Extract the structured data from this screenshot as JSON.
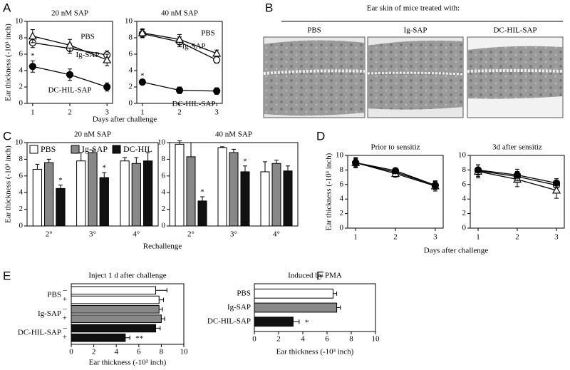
{
  "panel_b": {
    "panel": "B",
    "title": "Ear skin of mice treated with:",
    "labels": [
      "PBS",
      "Ig-SAP",
      "DC-HIL-SAP"
    ]
  },
  "chart_data": [
    {
      "type": "line",
      "panel": "A",
      "title": "20 nM SAP",
      "ylabel": "Ear thickness (-10³ inch)",
      "xlabel": "Days after challenge",
      "x": [
        1,
        2,
        3
      ],
      "xlim": [
        0.85,
        3.15
      ],
      "xticks": [
        1,
        2,
        3
      ],
      "ylim": [
        0,
        10
      ],
      "yticks": [
        0,
        2,
        4,
        6,
        8,
        10
      ],
      "series": [
        {
          "name": "PBS",
          "marker": "open-circle",
          "color": "#000000",
          "values": [
            7.4,
            6.7,
            5.9
          ],
          "errors": [
            0.6,
            0.6,
            0.5
          ]
        },
        {
          "name": "Ig-SAP",
          "marker": "open-triangle",
          "color": "#000000",
          "values": [
            8.2,
            7.1,
            5.3
          ],
          "errors": [
            0.8,
            0.7,
            0.7
          ]
        },
        {
          "name": "DC-HIL-SAP",
          "marker": "filled-circle",
          "color": "#000000",
          "values": [
            4.5,
            3.5,
            2.0
          ],
          "errors": [
            0.7,
            0.7,
            0.5
          ],
          "stars": [
            "*",
            null,
            null
          ]
        }
      ]
    },
    {
      "type": "line",
      "title": "40 nM SAP",
      "x": [
        1,
        2,
        3
      ],
      "xlim": [
        0.85,
        3.15
      ],
      "xticks": [
        1,
        2,
        3
      ],
      "ylim": [
        0,
        10
      ],
      "yticks": [
        0,
        2,
        4,
        6,
        8,
        10
      ],
      "series": [
        {
          "name": "PBS",
          "marker": "open-circle",
          "color": "#000000",
          "values": [
            8.5,
            7.5,
            5.3
          ],
          "errors": [
            0.5,
            0.6,
            0.4
          ]
        },
        {
          "name": "Ig-SAP",
          "marker": "open-triangle",
          "color": "#000000",
          "values": [
            8.6,
            7.8,
            6.1
          ],
          "errors": [
            0.5,
            0.6,
            0.4
          ]
        },
        {
          "name": "DC-HIL-SAP",
          "marker": "filled-circle",
          "color": "#000000",
          "values": [
            2.6,
            1.6,
            1.5
          ],
          "errors": [
            0.2,
            0.4,
            0.4
          ],
          "stars": [
            "*",
            null,
            null
          ]
        }
      ]
    },
    {
      "type": "bar",
      "panel": "C",
      "title": "20 nM SAP",
      "ylabel": "Ear thickness (-10³ inch)",
      "xlabel": "Rechallenge",
      "legend": "upper left",
      "categories": [
        "2°",
        "3°",
        "4°"
      ],
      "ylim": [
        0,
        10
      ],
      "yticks": [
        0,
        2,
        4,
        6,
        8,
        10
      ],
      "series": [
        {
          "name": "PBS",
          "color": "#ffffff",
          "values": [
            6.8,
            7.8,
            7.8
          ],
          "errors": [
            0.6,
            1.0,
            0.4
          ]
        },
        {
          "name": "Ig-SAP",
          "color": "#888888",
          "values": [
            7.6,
            8.8,
            7.5
          ],
          "errors": [
            0.4,
            0.3,
            0.7
          ]
        },
        {
          "name": "DC-HIL",
          "color": "#111111",
          "values": [
            4.5,
            5.8,
            7.8
          ],
          "errors": [
            0.4,
            0.6,
            1.0
          ],
          "stars": [
            "*",
            "*",
            null
          ]
        }
      ]
    },
    {
      "type": "bar",
      "title": "40 nM SAP",
      "categories": [
        "2°",
        "3°",
        "4°"
      ],
      "ylim": [
        0,
        10
      ],
      "yticks": [
        0,
        2,
        4,
        6,
        8,
        10
      ],
      "series": [
        {
          "color": "#ffffff",
          "values": [
            9.8,
            9.4,
            6.5
          ],
          "errors": [
            0.4,
            0.1,
            1.2
          ]
        },
        {
          "color": "#888888",
          "values": [
            8.3,
            8.8,
            7.5
          ],
          "errors": [
            1.7,
            0.4,
            0.4
          ]
        },
        {
          "color": "#111111",
          "values": [
            3.0,
            6.5,
            6.6
          ],
          "errors": [
            0.5,
            0.7,
            0.6
          ],
          "stars": [
            "*",
            "*",
            null
          ]
        }
      ]
    },
    {
      "type": "line",
      "panel": "D",
      "title": "Prior to sensitiz",
      "ylabel": "Ear thickness (-10³ inch)",
      "xlabel": "Days after challenge",
      "x": [
        1,
        2,
        3
      ],
      "xlim": [
        0.8,
        3.2
      ],
      "xticks": [
        1,
        2,
        3
      ],
      "ylim": [
        0,
        10
      ],
      "yticks": [
        0,
        2,
        4,
        6,
        8,
        10
      ],
      "series": [
        {
          "marker": "open-circle",
          "color": "#000000",
          "values": [
            9.0,
            7.7,
            5.9
          ],
          "errors": [
            0.6,
            0.4,
            0.6
          ]
        },
        {
          "marker": "open-triangle",
          "color": "#000000",
          "values": [
            9.0,
            7.5,
            5.8
          ],
          "errors": [
            0.7,
            0.5,
            0.7
          ]
        },
        {
          "marker": "filled-circle",
          "color": "#000000",
          "values": [
            9.0,
            7.9,
            5.9
          ],
          "errors": [
            0.5,
            0.3,
            0.5
          ]
        }
      ]
    },
    {
      "type": "line",
      "title": "3d after sensitiz",
      "x": [
        1,
        2,
        3
      ],
      "xlim": [
        0.8,
        3.2
      ],
      "xticks": [
        1,
        2,
        3
      ],
      "ylim": [
        0,
        10
      ],
      "yticks": [
        0,
        2,
        4,
        6,
        8,
        10
      ],
      "series": [
        {
          "marker": "open-circle",
          "color": "#000000",
          "values": [
            7.9,
            7.1,
            5.9
          ],
          "errors": [
            0.8,
            0.7,
            0.6
          ]
        },
        {
          "marker": "open-triangle",
          "color": "#000000",
          "values": [
            7.8,
            6.7,
            5.2
          ],
          "errors": [
            0.9,
            1.0,
            1.1
          ]
        },
        {
          "marker": "filled-circle",
          "color": "#000000",
          "values": [
            8.0,
            7.3,
            6.2
          ],
          "errors": [
            0.7,
            0.8,
            0.6
          ]
        }
      ]
    },
    {
      "type": "hbar",
      "panel": "E",
      "title": "Inject 1 d after challenge",
      "xlabel": "Ear thickness (-10³ inch)",
      "categories": [
        "PBS",
        "Ig-SAP",
        "DC-HIL-SAP"
      ],
      "colors": [
        "#ffffff",
        "#888888",
        "#111111"
      ],
      "xlim": [
        0,
        10
      ],
      "xticks": [
        0,
        2,
        4,
        6,
        8,
        10
      ],
      "series": [
        {
          "name": "–",
          "values": [
            7.5,
            7.8,
            7.5
          ],
          "errors": [
            1.0,
            0.3,
            0.4
          ]
        },
        {
          "name": "+",
          "values": [
            7.8,
            8.0,
            4.8
          ],
          "errors": [
            0.4,
            0.3,
            0.4
          ],
          "stars": [
            null,
            null,
            "**"
          ]
        }
      ]
    },
    {
      "type": "hbar",
      "panel": "F",
      "title": "Induced by PMA",
      "xlabel": "Ear thickness (-10³ inch)",
      "categories": [
        "PBS",
        "Ig-SAP",
        "DC-HIL-SAP"
      ],
      "colors": [
        "#ffffff",
        "#888888",
        "#111111"
      ],
      "xlim": [
        0,
        10
      ],
      "xticks": [
        0,
        2,
        4,
        6,
        8,
        10
      ],
      "series": [
        {
          "values": [
            6.5,
            6.8,
            3.2
          ],
          "errors": [
            0.3,
            0.3,
            0.5
          ],
          "stars": [
            null,
            null,
            "*"
          ]
        }
      ]
    }
  ]
}
